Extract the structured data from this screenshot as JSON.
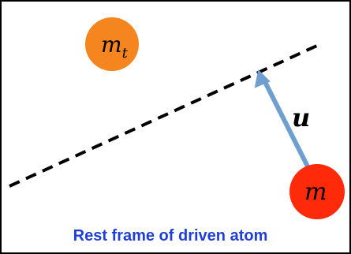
{
  "diagram": {
    "target_mass": {
      "base": "m",
      "subscript": "t",
      "color": "#f5851f"
    },
    "driven_mass": {
      "label": "m",
      "color": "#fe2a0a"
    },
    "vector": {
      "label": "u",
      "color": "#6e9fcf"
    },
    "caption": {
      "text": "Rest frame of driven atom",
      "color": "#1f3fd6"
    },
    "frame_color": "#000000",
    "line_color": "#000000"
  }
}
